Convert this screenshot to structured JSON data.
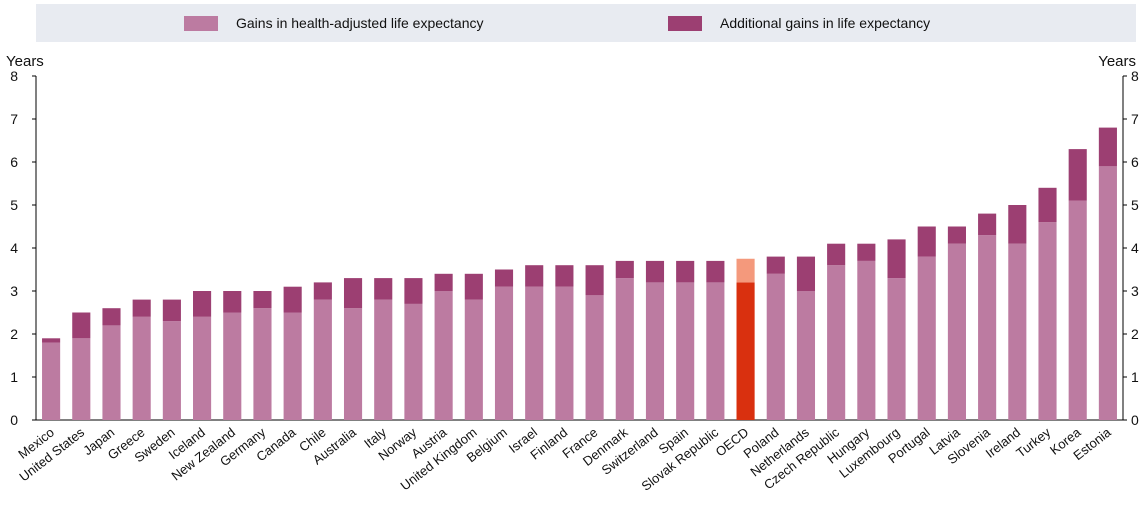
{
  "chart_data": {
    "type": "bar",
    "stacked": true,
    "categories": [
      "Mexico",
      "United States",
      "Japan",
      "Greece",
      "Sweden",
      "Iceland",
      "New Zealand",
      "Germany",
      "Canada",
      "Chile",
      "Australia",
      "Italy",
      "Norway",
      "Austria",
      "United Kingdom",
      "Belgium",
      "Israel",
      "Finland",
      "France",
      "Denmark",
      "Switzerland",
      "Spain",
      "Slovak Republic",
      "OECD",
      "Poland",
      "Netherlands",
      "Czech Republic",
      "Hungary",
      "Luxembourg",
      "Portugal",
      "Latvia",
      "Slovenia",
      "Ireland",
      "Turkey",
      "Korea",
      "Estonia"
    ],
    "series": [
      {
        "name": "Gains in health-adjusted life expectancy",
        "values": [
          1.8,
          1.9,
          2.2,
          2.4,
          2.3,
          2.4,
          2.5,
          2.6,
          2.5,
          2.8,
          2.6,
          2.8,
          2.7,
          3.0,
          2.8,
          3.1,
          3.1,
          3.1,
          2.9,
          3.3,
          3.2,
          3.2,
          3.2,
          3.2,
          3.4,
          3.0,
          3.6,
          3.7,
          3.3,
          3.8,
          4.1,
          4.3,
          4.1,
          4.6,
          5.1,
          5.9
        ]
      },
      {
        "name": "Additional gains in life expectancy",
        "values": [
          0.1,
          0.6,
          0.4,
          0.4,
          0.5,
          0.6,
          0.5,
          0.4,
          0.6,
          0.4,
          0.7,
          0.5,
          0.6,
          0.4,
          0.6,
          0.4,
          0.5,
          0.5,
          0.7,
          0.4,
          0.5,
          0.5,
          0.5,
          0.55,
          0.4,
          0.8,
          0.5,
          0.4,
          0.9,
          0.7,
          0.4,
          0.5,
          0.9,
          0.8,
          1.2,
          0.9
        ]
      }
    ],
    "highlight_category": "OECD",
    "ylabel_left": "Years",
    "ylabel_right": "Years",
    "ylim": [
      0,
      8
    ],
    "yticks": [
      0,
      1,
      2,
      3,
      4,
      5,
      6,
      7,
      8
    ],
    "grid": false,
    "legend_position": "top"
  },
  "colors": {
    "base": "#bc7ba1",
    "additional": "#9c3f72",
    "highlight_base": "#d9300f",
    "highlight_additional": "#f4997c",
    "legend_bg": "#e8ebf1",
    "axis": "#000000"
  }
}
